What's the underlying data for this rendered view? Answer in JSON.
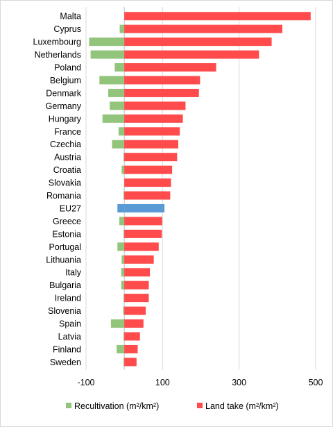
{
  "chart_data": {
    "type": "bar",
    "orientation": "horizontal",
    "stacked_diverging": true,
    "categories": [
      "Malta",
      "Cyprus",
      "Luxembourg",
      "Netherlands",
      "Poland",
      "Belgium",
      "Denmark",
      "Germany",
      "Hungary",
      "France",
      "Czechia",
      "Austria",
      "Croatia",
      "Slovakia",
      "Romania",
      "EU27",
      "Greece",
      "Estonia",
      "Portugal",
      "Lithuania",
      "Italy",
      "Bulgaria",
      "Ireland",
      "Slovenia",
      "Spain",
      "Latvia",
      "Finland",
      "Sweden"
    ],
    "series": [
      {
        "name": "Recultivation (m²/km²)",
        "color": "#92c47c",
        "values": [
          0,
          -12,
          -92,
          -88,
          -25,
          -65,
          -42,
          -38,
          -57,
          -15,
          -32,
          -2,
          -7,
          0,
          -2,
          -18,
          -13,
          -2,
          -18,
          -7,
          -8,
          -8,
          -2,
          -3,
          -35,
          -2,
          -20,
          -2
        ]
      },
      {
        "name": "Land take (m²/km²)",
        "color": "#ff4b4b",
        "values": [
          487,
          413,
          385,
          352,
          240,
          198,
          195,
          160,
          153,
          145,
          141,
          138,
          125,
          122,
          120,
          105,
          99,
          98,
          90,
          77,
          67,
          64,
          64,
          56,
          50,
          41,
          35,
          32
        ]
      }
    ],
    "highlight": {
      "category": "EU27",
      "color": "#5b9bd5"
    },
    "xlim": [
      -100,
      500
    ],
    "xticks": [
      -100,
      100,
      300,
      500
    ],
    "grid": true,
    "legend_position": "bottom",
    "title": "",
    "xlabel": "",
    "ylabel": ""
  }
}
